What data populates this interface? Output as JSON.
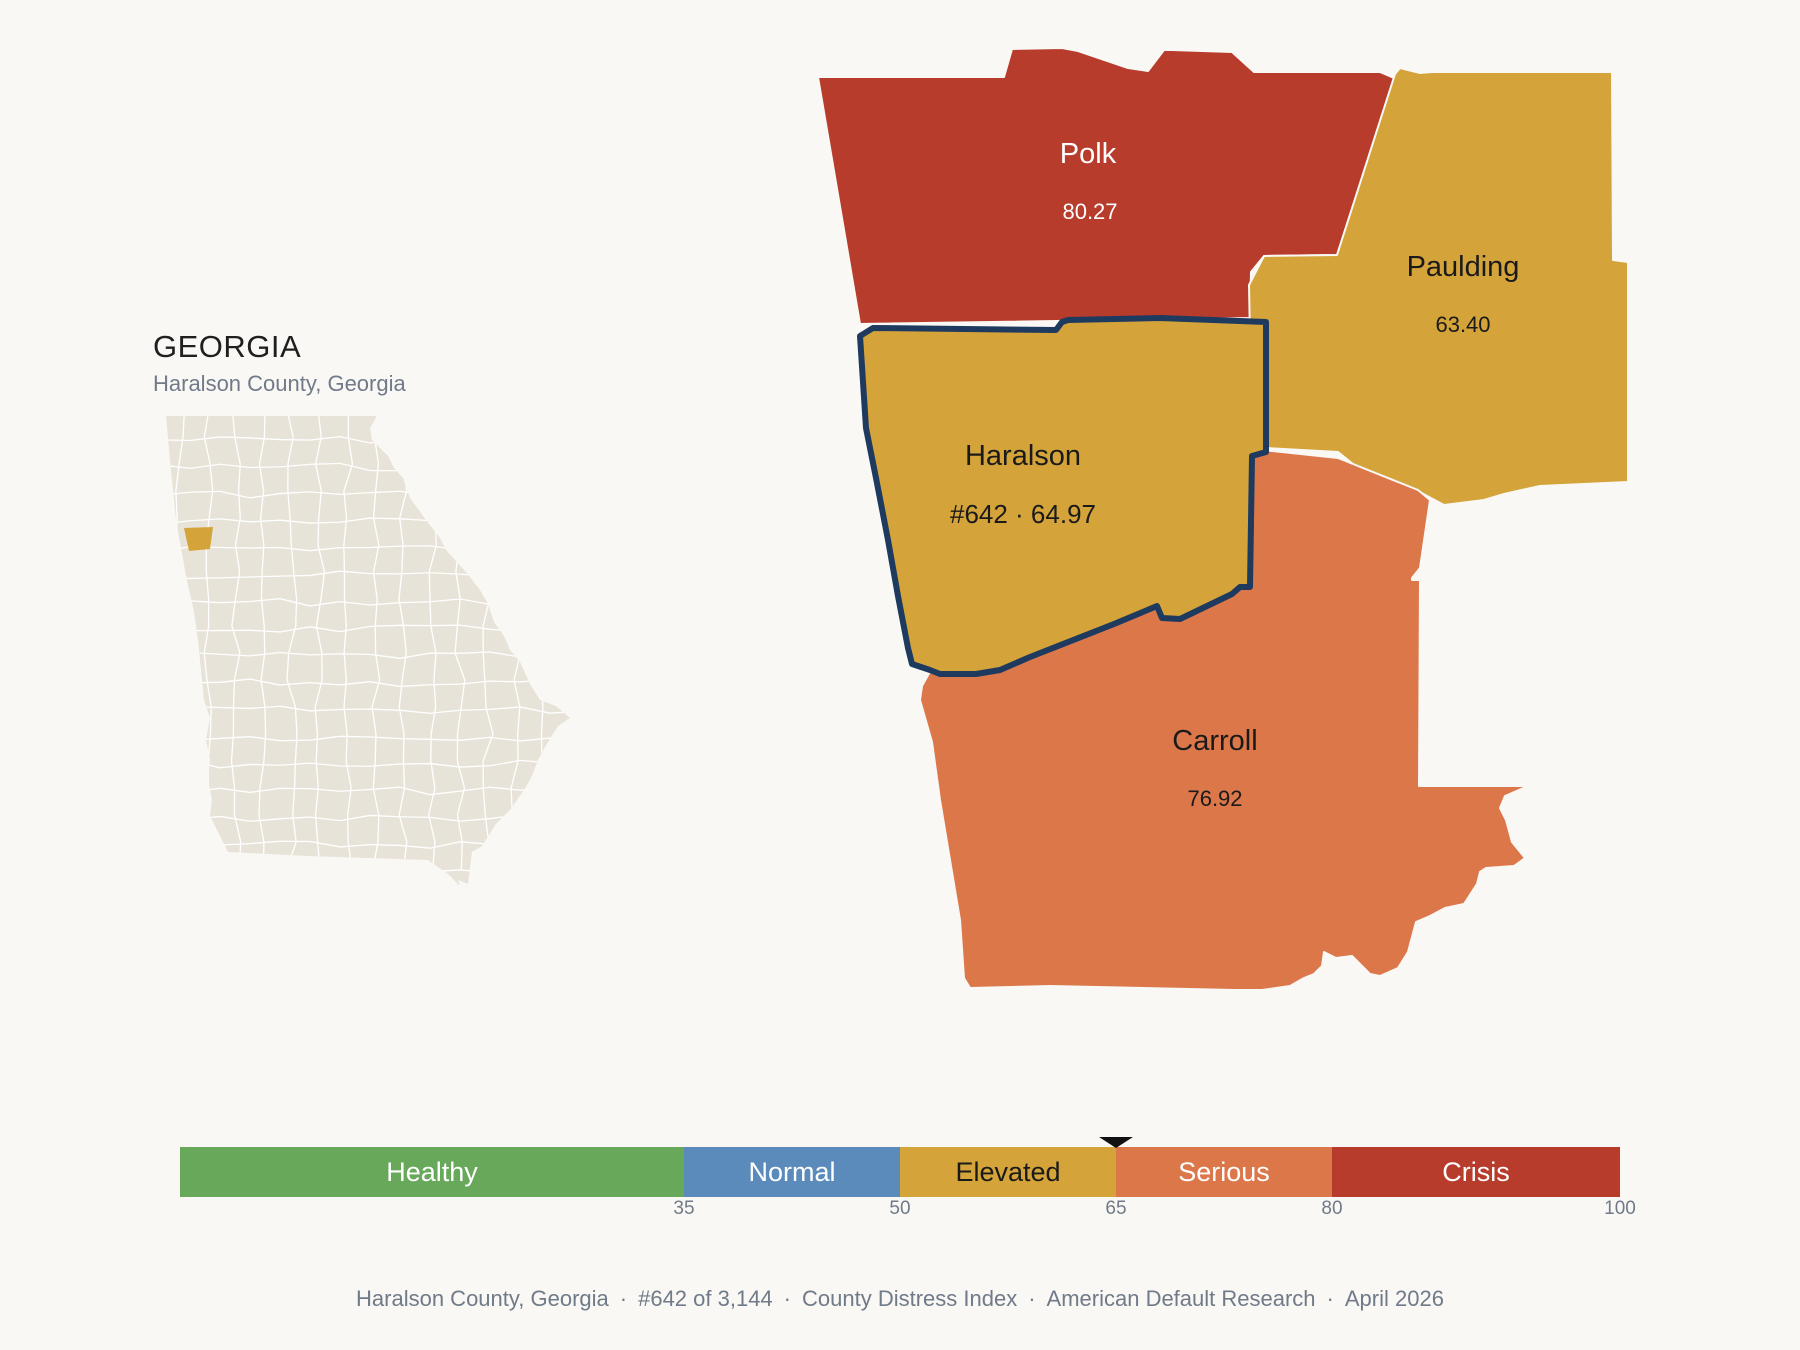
{
  "inset": {
    "state_title": "GEORGIA",
    "subtitle": "Haralson County, Georgia",
    "state_fill": "#e8e3d8",
    "highlight_fill": "#d4a43a"
  },
  "counties": [
    {
      "id": "polk",
      "name": "Polk",
      "value": "80.27",
      "fill": "#b83c2c",
      "text_color": "#ffffff"
    },
    {
      "id": "paulding",
      "name": "Paulding",
      "value": "63.40",
      "fill": "#d4a43a",
      "text_color": "#1a1a1a"
    },
    {
      "id": "carroll",
      "name": "Carroll",
      "value": "76.92",
      "fill": "#dc774a",
      "text_color": "#1a1a1a"
    },
    {
      "id": "haralson",
      "name": "Haralson",
      "value": "#642 · 64.97",
      "fill": "#d4a43a",
      "text_color": "#1a1a1a",
      "outline": "#1e3a5f"
    }
  ],
  "legend": {
    "min": 0,
    "max": 100,
    "marker_value": 64.97,
    "segments": [
      {
        "label": "Healthy",
        "from": 0,
        "to": 35,
        "color": "#67a85a",
        "text_color": "#ffffff"
      },
      {
        "label": "Normal",
        "from": 35,
        "to": 50,
        "color": "#5b8bbb",
        "text_color": "#ffffff"
      },
      {
        "label": "Elevated",
        "from": 50,
        "to": 65,
        "color": "#d4a43a",
        "text_color": "#1a1a1a"
      },
      {
        "label": "Serious",
        "from": 65,
        "to": 80,
        "color": "#dc774a",
        "text_color": "#ffffff"
      },
      {
        "label": "Crisis",
        "from": 80,
        "to": 100,
        "color": "#b83c2c",
        "text_color": "#ffffff"
      }
    ],
    "ticks": [
      "35",
      "50",
      "65",
      "80",
      "100"
    ]
  },
  "footer": {
    "items": [
      "Haralson County, Georgia",
      "#642 of 3,144",
      "County Distress Index",
      "American Default Research",
      "April 2026"
    ],
    "separator": "·"
  }
}
